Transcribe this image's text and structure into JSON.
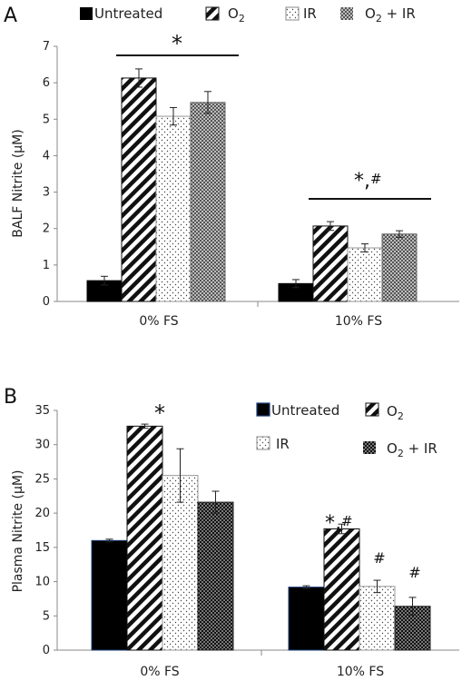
{
  "chart_data": [
    {
      "type": "bar",
      "panel": "A",
      "ylabel": "BALF Nitrite (µM)",
      "ylim": [
        0,
        7
      ],
      "yticks": [
        0,
        1,
        2,
        3,
        4,
        5,
        6,
        7
      ],
      "categories": [
        "0% FS",
        "10% FS"
      ],
      "series": [
        {
          "name": "Untreated",
          "values": [
            0.57,
            0.49
          ],
          "errors": [
            0.12,
            0.11
          ]
        },
        {
          "name": "O2",
          "values": [
            6.13,
            2.07
          ],
          "errors": [
            0.25,
            0.12
          ]
        },
        {
          "name": "IR",
          "values": [
            5.08,
            1.47
          ],
          "errors": [
            0.24,
            0.11
          ]
        },
        {
          "name": "O2 + IR",
          "values": [
            5.46,
            1.85
          ],
          "errors": [
            0.3,
            0.09
          ]
        }
      ],
      "legend_labels": [
        "Untreated",
        "O",
        "IR",
        "O",
        " + IR"
      ],
      "legend_subscripts": [
        "2",
        "2"
      ],
      "annotations": [
        "*",
        "*,",
        "#"
      ],
      "legend_position": "top",
      "grid": false
    },
    {
      "type": "bar",
      "panel": "B",
      "ylabel": "Plasma Nitrite (µM)",
      "ylim": [
        0,
        35
      ],
      "yticks": [
        0,
        5,
        10,
        15,
        20,
        25,
        30,
        35
      ],
      "categories": [
        "0% FS",
        "10% FS"
      ],
      "series": [
        {
          "name": "Untreated",
          "values": [
            16.0,
            9.2
          ],
          "errors": [
            0.2,
            0.2
          ]
        },
        {
          "name": "O2",
          "values": [
            32.7,
            17.7
          ],
          "errors": [
            0.3,
            0.7
          ]
        },
        {
          "name": "IR",
          "values": [
            25.5,
            9.3
          ],
          "errors": [
            3.9,
            0.9
          ]
        },
        {
          "name": "O2 + IR",
          "values": [
            21.6,
            6.4
          ],
          "errors": [
            1.6,
            1.3
          ]
        }
      ],
      "legend_labels": [
        "Untreated",
        "O",
        "IR",
        "O",
        " + IR"
      ],
      "legend_subscripts": [
        "2",
        "2"
      ],
      "annotations": [
        "*",
        "*,",
        "#",
        "#",
        "#"
      ],
      "legend_position": "top-right",
      "grid": false
    }
  ],
  "panels": {
    "a": {
      "letter": "A"
    },
    "b": {
      "letter": "B"
    }
  },
  "colors": {
    "untreated": "#000000",
    "o2": "#111111",
    "ir": "#555555",
    "o2ir_a": "#777777",
    "o2ir_b": "#1a1a1a",
    "axis": "#888888"
  }
}
